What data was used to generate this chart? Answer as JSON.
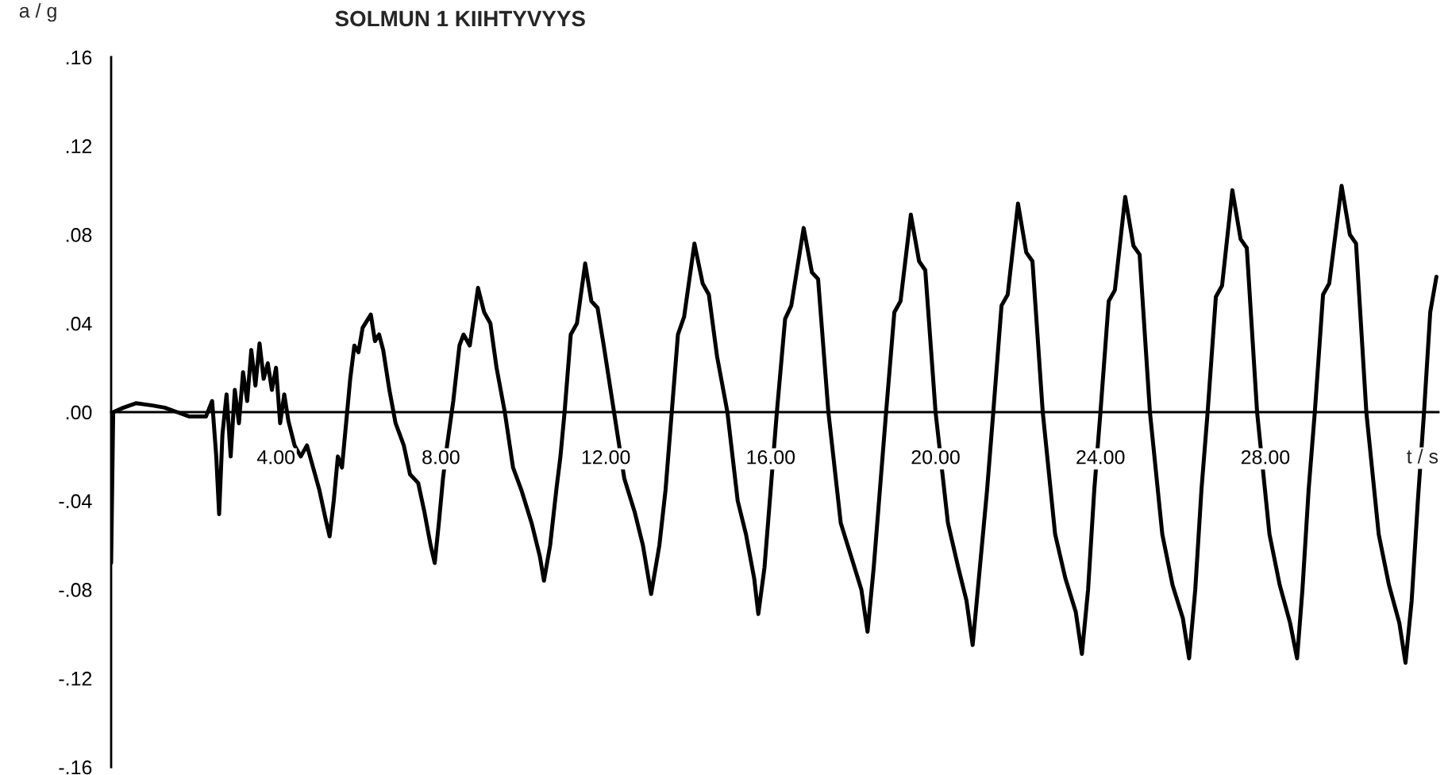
{
  "chart_data": {
    "type": "line",
    "title": "SOLMUN 1 KIIHTYVYYS",
    "xlabel": "t / s",
    "ylabel": "a / g",
    "xlim": [
      0,
      32.2
    ],
    "ylim": [
      -0.16,
      0.16
    ],
    "xticks": [
      {
        "value": 4,
        "label": "4.00"
      },
      {
        "value": 8,
        "label": "8.00"
      },
      {
        "value": 12,
        "label": "12.00"
      },
      {
        "value": 16,
        "label": "16.00"
      },
      {
        "value": 20,
        "label": "20.00"
      },
      {
        "value": 24,
        "label": "24.00"
      },
      {
        "value": 28,
        "label": "28.00"
      }
    ],
    "yticks": [
      {
        "value": 0.16,
        "label": ".16"
      },
      {
        "value": 0.12,
        "label": ".12"
      },
      {
        "value": 0.08,
        "label": ".08"
      },
      {
        "value": 0.04,
        "label": ".04"
      },
      {
        "value": 0,
        "label": ".00"
      },
      {
        "value": -0.04,
        "label": "-.04"
      },
      {
        "value": -0.08,
        "label": "-.08"
      },
      {
        "value": -0.12,
        "label": "-.12"
      },
      {
        "value": -0.16,
        "label": "-.16"
      }
    ],
    "grid": false,
    "legend": false,
    "marker": "none",
    "line_style": "solid",
    "series": [
      {
        "color": "#000000",
        "x": [
          0,
          0.05,
          0.3,
          0.6,
          1.0,
          1.3,
          1.6,
          1.9,
          2.3,
          2.45,
          2.55,
          2.62,
          2.7,
          2.8,
          2.9,
          3.0,
          3.1,
          3.2,
          3.3,
          3.4,
          3.5,
          3.6,
          3.7,
          3.8,
          3.9,
          4.0,
          4.1,
          4.2,
          4.3,
          4.45,
          4.6,
          4.75,
          4.9,
          5.05,
          5.2,
          5.3,
          5.4,
          5.5,
          5.6,
          5.7,
          5.8,
          5.9,
          6.0,
          6.1,
          6.3,
          6.4,
          6.5,
          6.6,
          6.75,
          6.9,
          7.1,
          7.25,
          7.45,
          7.6,
          7.75,
          7.85,
          7.95,
          8.05,
          8.15,
          8.3,
          8.45,
          8.55,
          8.7,
          8.9,
          9.05,
          9.2,
          9.35,
          9.55,
          9.75,
          9.95,
          10.2,
          10.4,
          10.5,
          10.65,
          10.8,
          10.9,
          11.0,
          11.15,
          11.3,
          11.5,
          11.65,
          11.8,
          11.95,
          12.2,
          12.45,
          12.7,
          12.9,
          13.1,
          13.3,
          13.45,
          13.6,
          13.75,
          13.9,
          14.15,
          14.35,
          14.5,
          14.7,
          14.95,
          15.2,
          15.4,
          15.6,
          15.7,
          15.85,
          16.0,
          16.15,
          16.35,
          16.5,
          16.8,
          17.0,
          17.15,
          17.4,
          17.7,
          17.95,
          18.2,
          18.35,
          18.5,
          18.65,
          18.8,
          19.0,
          19.15,
          19.4,
          19.6,
          19.75,
          20.0,
          20.3,
          20.55,
          20.75,
          20.9,
          21.05,
          21.25,
          21.4,
          21.6,
          21.75,
          22.0,
          22.2,
          22.35,
          22.6,
          22.9,
          23.15,
          23.4,
          23.55,
          23.7,
          23.85,
          24.0,
          24.2,
          24.35,
          24.6,
          24.8,
          24.95,
          25.2,
          25.5,
          25.75,
          26.0,
          26.15,
          26.3,
          26.45,
          26.6,
          26.8,
          26.95,
          27.2,
          27.4,
          27.55,
          27.8,
          28.1,
          28.35,
          28.6,
          28.77,
          28.9,
          29.05,
          29.2,
          29.4,
          29.55,
          29.85,
          30.05,
          30.2,
          30.45,
          30.75,
          31.0,
          31.25,
          31.4,
          31.55,
          31.7,
          31.85,
          32.0,
          32.15
        ],
        "values": [
          -0.068,
          0.0,
          0.002,
          0.004,
          0.003,
          0.002,
          0.0,
          -0.002,
          -0.002,
          0.005,
          -0.02,
          -0.046,
          -0.01,
          0.008,
          -0.02,
          0.01,
          -0.005,
          0.018,
          0.005,
          0.028,
          0.012,
          0.031,
          0.015,
          0.022,
          0.01,
          0.02,
          -0.005,
          0.008,
          -0.004,
          -0.015,
          -0.02,
          -0.015,
          -0.025,
          -0.035,
          -0.048,
          -0.056,
          -0.04,
          -0.02,
          -0.025,
          -0.005,
          0.015,
          0.03,
          0.027,
          0.038,
          0.044,
          0.032,
          0.035,
          0.028,
          0.01,
          -0.005,
          -0.015,
          -0.028,
          -0.032,
          -0.045,
          -0.06,
          -0.068,
          -0.05,
          -0.03,
          -0.015,
          0.005,
          0.03,
          0.035,
          0.03,
          0.056,
          0.045,
          0.04,
          0.02,
          0.0,
          -0.025,
          -0.035,
          -0.05,
          -0.065,
          -0.076,
          -0.06,
          -0.035,
          -0.02,
          0.0,
          0.035,
          0.04,
          0.067,
          0.05,
          0.047,
          0.03,
          0.0,
          -0.03,
          -0.045,
          -0.06,
          -0.082,
          -0.06,
          -0.035,
          0.0,
          0.035,
          0.043,
          0.076,
          0.058,
          0.053,
          0.025,
          0.0,
          -0.04,
          -0.055,
          -0.075,
          -0.091,
          -0.07,
          -0.035,
          0.0,
          0.042,
          0.048,
          0.083,
          0.063,
          0.06,
          0.0,
          -0.05,
          -0.065,
          -0.08,
          -0.099,
          -0.07,
          -0.035,
          0.0,
          0.045,
          0.05,
          0.089,
          0.068,
          0.064,
          0.0,
          -0.05,
          -0.07,
          -0.085,
          -0.105,
          -0.075,
          -0.035,
          0.0,
          0.048,
          0.053,
          0.094,
          0.072,
          0.068,
          0.0,
          -0.055,
          -0.075,
          -0.09,
          -0.109,
          -0.08,
          -0.035,
          0.0,
          0.05,
          0.055,
          0.097,
          0.075,
          0.071,
          0.0,
          -0.055,
          -0.078,
          -0.093,
          -0.111,
          -0.08,
          -0.035,
          0.0,
          0.052,
          0.057,
          0.1,
          0.078,
          0.074,
          0.0,
          -0.055,
          -0.078,
          -0.095,
          -0.111,
          -0.08,
          -0.035,
          0.0,
          0.053,
          0.058,
          0.102,
          0.08,
          0.076,
          0.0,
          -0.055,
          -0.078,
          -0.095,
          -0.113,
          -0.085,
          -0.04,
          0.0,
          0.045,
          0.061
        ]
      }
    ]
  }
}
